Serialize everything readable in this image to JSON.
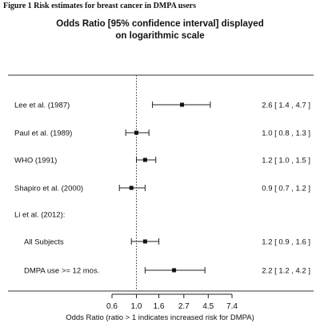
{
  "figure_label": "Figure 1 Risk estimates for breast cancer in DMPA users",
  "chart_data": {
    "type": "forest",
    "title_line1": "Odds Ratio [95% confidence interval] displayed",
    "title_line2": "on logarithmic scale",
    "xlabel": "Odds Ratio (ratio > 1 indicates increased risk for DMPA)",
    "x_scale": "log",
    "x_ticks": [
      {
        "value": 0.6,
        "label": "0.6"
      },
      {
        "value": 1.0,
        "label": "1.0"
      },
      {
        "value": 1.6,
        "label": "1.6"
      },
      {
        "value": 2.7,
        "label": "2.7"
      },
      {
        "value": 4.5,
        "label": "4.5"
      },
      {
        "value": 7.4,
        "label": "7.4"
      }
    ],
    "xlim": [
      0.6,
      7.4
    ],
    "reference_line": 1.0,
    "rows": [
      {
        "label": "Lee et al. (1987)",
        "or": 2.6,
        "lo": 1.4,
        "hi": 4.7,
        "ci_text": "2.6 [ 1.4 , 4.7 ]"
      },
      {
        "label": "Paul et al. (1989)",
        "or": 1.0,
        "lo": 0.8,
        "hi": 1.3,
        "ci_text": "1.0 [ 0.8 , 1.3 ]"
      },
      {
        "label": "WHO (1991)",
        "or": 1.2,
        "lo": 1.0,
        "hi": 1.5,
        "ci_text": "1.2 [ 1.0 , 1.5 ]"
      },
      {
        "label": "Shapiro et al. (2000)",
        "or": 0.9,
        "lo": 0.7,
        "hi": 1.2,
        "ci_text": "0.9 [ 0.7 , 1.2 ]"
      },
      {
        "label": "Li et al. (2012):",
        "or": null,
        "lo": null,
        "hi": null,
        "ci_text": ""
      },
      {
        "label": "All Subjects",
        "or": 1.2,
        "lo": 0.9,
        "hi": 1.6,
        "ci_text": "1.2 [ 0.9 , 1.6 ]",
        "indent": true
      },
      {
        "label": "DMPA use >= 12 mos.",
        "or": 2.2,
        "lo": 1.2,
        "hi": 4.2,
        "ci_text": "2.2 [ 1.2 , 4.2 ]",
        "indent": true
      }
    ]
  }
}
